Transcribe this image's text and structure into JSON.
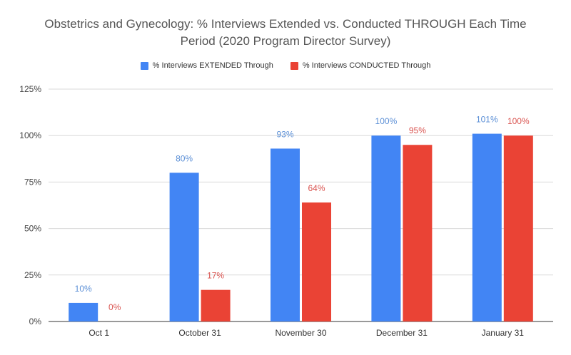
{
  "chart_data": {
    "type": "bar",
    "title_line1": "Obstetrics and Gynecology: % Interviews Extended vs. Conducted THROUGH Each Time",
    "title_line2": "Period (2020 Program Director Survey)",
    "categories": [
      "Oct 1",
      "October 31",
      "November 30",
      "December 31",
      "January 31"
    ],
    "series": [
      {
        "name": "% Interviews EXTENDED Through",
        "color": "#4285f4",
        "label_color": "#5b8fd6",
        "values": [
          10,
          80,
          93,
          100,
          101
        ],
        "labels": [
          "10%",
          "80%",
          "93%",
          "100%",
          "101%"
        ]
      },
      {
        "name": "% Interviews CONDUCTED Through",
        "color": "#ea4335",
        "label_color": "#d9534f",
        "values": [
          0,
          17,
          64,
          95,
          100
        ],
        "labels": [
          "0%",
          "17%",
          "64%",
          "95%",
          "100%"
        ]
      }
    ],
    "y_ticks": [
      0,
      25,
      50,
      75,
      100,
      125
    ],
    "y_tick_labels": [
      "0%",
      "25%",
      "50%",
      "75%",
      "100%",
      "125%"
    ],
    "ylim": [
      0,
      125
    ],
    "grid": true,
    "legend_position": "top"
  }
}
